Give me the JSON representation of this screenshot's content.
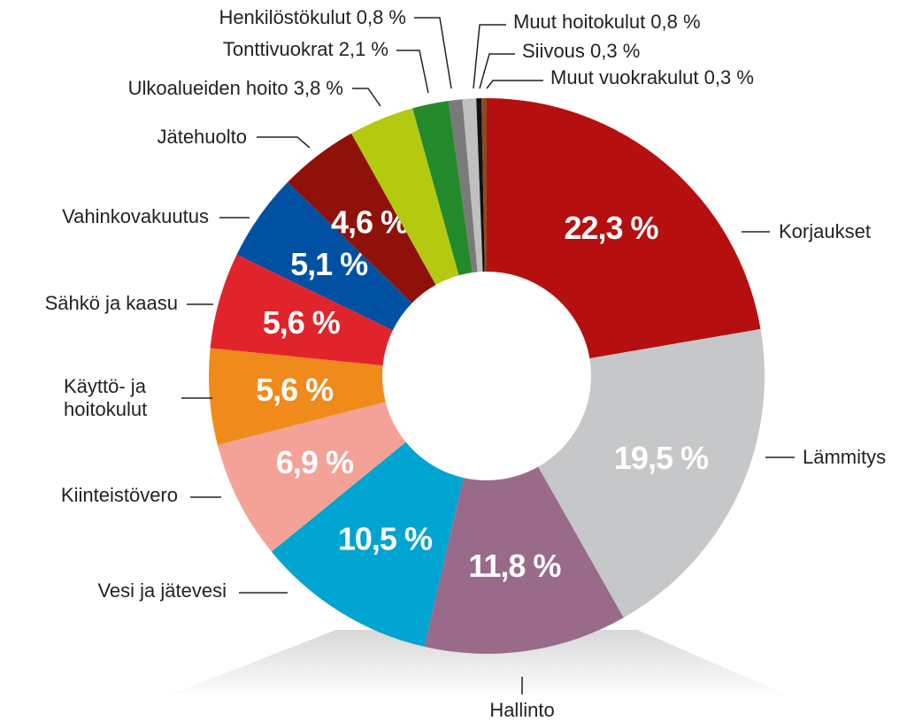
{
  "chart_data": {
    "type": "donut",
    "categories": [
      "Korjaukset",
      "Lämmitys",
      "Hallinto",
      "Vesi ja jätevesi",
      "Kiinteistövero",
      "Käyttö- ja hoitokulut",
      "Sähkö ja kaasu",
      "Vahinkovakuutus",
      "Jätehuolto",
      "Ulkoalueiden hoito 3,8 %",
      "Tonttivuokrat 2,1 %",
      "Henkilöstökulut 0,8 %",
      "Muut hoitokulut 0,8 %",
      "Siivous 0,3 %",
      "Muut vuokrakulut 0,3 %"
    ],
    "values": [
      22.3,
      19.5,
      11.8,
      10.5,
      6.9,
      5.6,
      5.6,
      5.1,
      4.6,
      3.8,
      2.1,
      0.8,
      0.8,
      0.3,
      0.3
    ],
    "value_labels": [
      "22,3 %",
      "19,5 %",
      "11,8 %",
      "10,5 %",
      "6,9 %",
      "5,6 %",
      "5,6 %",
      "5,1 %",
      "4,6 %",
      null,
      null,
      null,
      null,
      null,
      null
    ],
    "colors": [
      "#b50f10",
      "#c5c7c9",
      "#996a8a",
      "#00a4d1",
      "#f4a297",
      "#f08b1b",
      "#e1242b",
      "#0051a1",
      "#8f1109",
      "#b4ca11",
      "#238a2b",
      "#7a7a7a",
      "#c0c0c0",
      "#111111",
      "#8a4a22"
    ]
  }
}
